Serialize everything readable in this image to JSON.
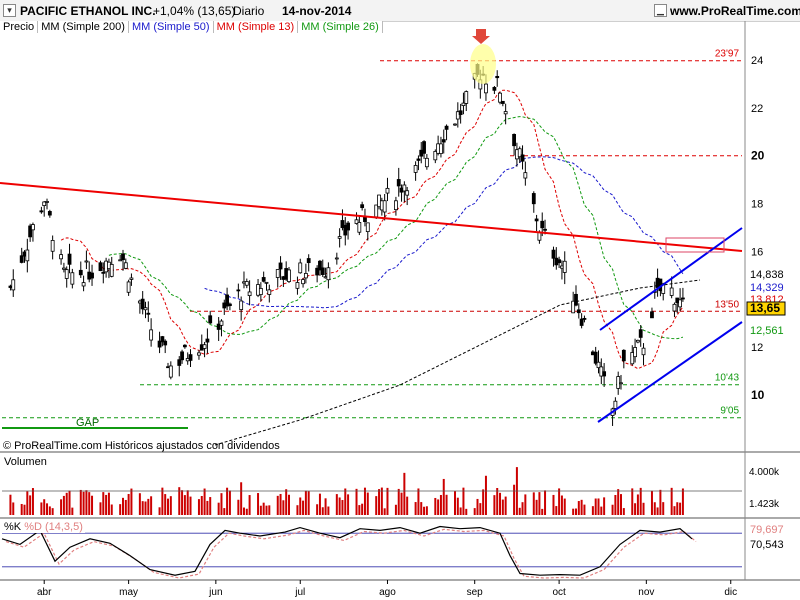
{
  "header": {
    "title": "PACIFIC ETHANOL INC.",
    "change": "+1,04% (13,65)",
    "period": "Diario",
    "date": "14-nov-2014",
    "site": "www.ProRealTime.com"
  },
  "legend": {
    "price": "Precio",
    "ma200": "MM (Simple 200)",
    "ma50": "MM (Simple 50)",
    "ma13": "MM (Simple 13)",
    "ma26": "MM (Simple 26)"
  },
  "colors": {
    "ma200": "#000000",
    "ma50": "#1a1acc",
    "ma13": "#dd0000",
    "ma26": "#119911",
    "volume": "#cc0000",
    "trendline_red": "#ee0000",
    "channel_blue": "#0000ee"
  },
  "footer": {
    "copyright": "© ProRealTime.com  Históricos ajustados con dividendos"
  },
  "annotations": {
    "gap_label": "GAP",
    "level_2397": "23'97",
    "level_1350": "13'50",
    "level_1043": "10'43",
    "level_905": "9'05"
  },
  "price_axis": {
    "ticks": [
      "24",
      "22",
      "20",
      "18",
      "16",
      "14",
      "12",
      "10"
    ],
    "bold_ticks": [
      "20",
      "10"
    ]
  },
  "value_boxes": {
    "ma200": "14,838",
    "ma50": "14,329",
    "ma13": "13,812",
    "last": "13,65",
    "ma26": "12,561"
  },
  "volume_panel": {
    "title": "Volumen",
    "ticks": [
      "4.000k",
      "1.423k"
    ]
  },
  "osc_panel": {
    "title_k": "%K",
    "title_d": "%D (14,3,5)",
    "value_d": "79,697",
    "value_k": "70,543"
  },
  "months": [
    "abr",
    "may",
    "jun",
    "jul",
    "ago",
    "sep",
    "oct",
    "nov",
    "dic"
  ],
  "chart_data": {
    "type": "candlestick",
    "title": "PACIFIC ETHANOL INC.",
    "period": "Diario",
    "x_range": [
      "2014-03-17",
      "2014-11-14"
    ],
    "months": [
      "abr",
      "may",
      "jun",
      "jul",
      "ago",
      "sep",
      "oct",
      "nov",
      "dic"
    ],
    "ylim": [
      9,
      25
    ],
    "close_keypoints": [
      {
        "date": "2014-03-20",
        "price": 14.5
      },
      {
        "date": "2014-04-01",
        "price": 18.2
      },
      {
        "date": "2014-04-08",
        "price": 15.0
      },
      {
        "date": "2014-04-18",
        "price": 15.2
      },
      {
        "date": "2014-04-28",
        "price": 16.0
      },
      {
        "date": "2014-05-08",
        "price": 13.0
      },
      {
        "date": "2014-05-16",
        "price": 11.2
      },
      {
        "date": "2014-05-28",
        "price": 12.3
      },
      {
        "date": "2014-06-10",
        "price": 14.3
      },
      {
        "date": "2014-06-25",
        "price": 15.0
      },
      {
        "date": "2014-07-10",
        "price": 15.3
      },
      {
        "date": "2014-07-18",
        "price": 17.0
      },
      {
        "date": "2014-07-28",
        "price": 17.8
      },
      {
        "date": "2014-08-10",
        "price": 19.2
      },
      {
        "date": "2014-08-20",
        "price": 20.8
      },
      {
        "date": "2014-08-28",
        "price": 22.0
      },
      {
        "date": "2014-09-03",
        "price": 23.5
      },
      {
        "date": "2014-09-10",
        "price": 22.8
      },
      {
        "date": "2014-09-18",
        "price": 19.5
      },
      {
        "date": "2014-09-24",
        "price": 17.0
      },
      {
        "date": "2014-10-03",
        "price": 15.2
      },
      {
        "date": "2014-10-10",
        "price": 13.0
      },
      {
        "date": "2014-10-16",
        "price": 10.8
      },
      {
        "date": "2014-10-20",
        "price": 9.4
      },
      {
        "date": "2014-10-24",
        "price": 11.3
      },
      {
        "date": "2014-10-31",
        "price": 12.2
      },
      {
        "date": "2014-11-04",
        "price": 14.0
      },
      {
        "date": "2014-11-08",
        "price": 14.7
      },
      {
        "date": "2014-11-14",
        "price": 13.65
      }
    ],
    "levels": [
      23.97,
      13.5,
      10.43,
      9.05
    ],
    "moving_averages": [
      {
        "name": "MM (Simple 200)",
        "last": 14.838
      },
      {
        "name": "MM (Simple 50)",
        "last": 14.329
      },
      {
        "name": "MM (Simple 13)",
        "last": 13.812
      },
      {
        "name": "MM (Simple 26)",
        "last": 12.561
      }
    ],
    "last_price": 13.65,
    "volume_ticks": [
      "4.000k",
      "1.423k"
    ],
    "oscillator": {
      "name": "%K / %D (14,3,5)",
      "last_d": 79.697,
      "last_k": 70.543,
      "ylim": [
        0,
        100
      ]
    }
  }
}
